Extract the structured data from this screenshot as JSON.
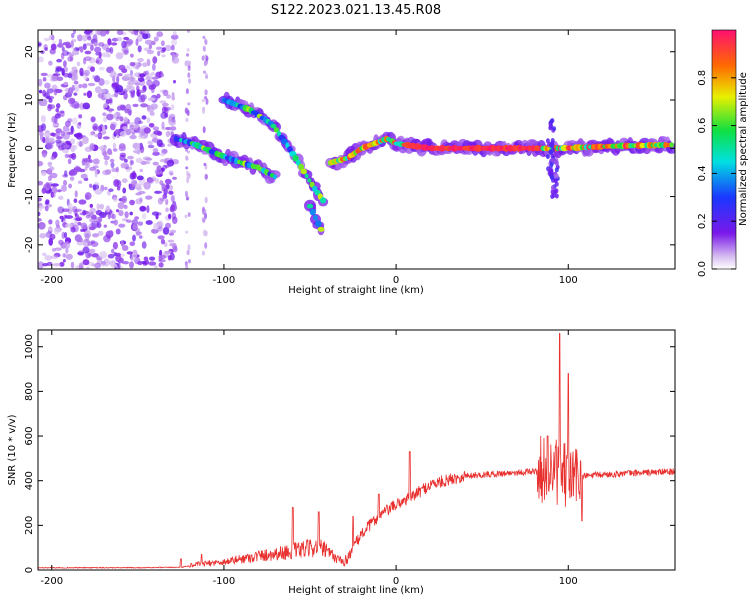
{
  "title": "S122.2023.021.13.45.R08",
  "colors": {
    "snr_line": "#e8302e",
    "ridge": "#ff2222"
  },
  "chart_data": [
    {
      "type": "heatmap",
      "xlabel": "Height of straight line (km)",
      "ylabel": "Frequency (Hz)",
      "xlim": [
        -208,
        162
      ],
      "ylim": [
        -25,
        24.5
      ],
      "xticks": [
        -200,
        -100,
        0,
        100
      ],
      "yticks": [
        -20,
        -10,
        0,
        10,
        20
      ],
      "xtick_labels": [
        "-200",
        "-100",
        "0",
        "100"
      ],
      "ytick_labels": [
        "-20",
        "-10",
        "0",
        "10",
        "20"
      ],
      "colorbar": {
        "label": "Normalized spectral amplitude",
        "range": [
          0,
          1
        ],
        "ticks": [
          0.0,
          0.2,
          0.4,
          0.6,
          0.8
        ],
        "tick_labels": [
          "0.0",
          "0.2",
          "0.4",
          "0.6",
          "0.8"
        ]
      },
      "traces": [
        {
          "name_hint": "main-ridge",
          "points": [
            [
              -128,
              2
            ],
            [
              -118,
              1
            ],
            [
              -105,
              -1
            ],
            [
              -90,
              -3
            ],
            [
              -80,
              -4
            ],
            [
              -70,
              -6
            ]
          ]
        },
        {
          "name_hint": "upper-arc",
          "points": [
            [
              -100,
              10
            ],
            [
              -85,
              8
            ],
            [
              -72,
              5
            ],
            [
              -62,
              0
            ],
            [
              -55,
              -4
            ],
            [
              -48,
              -8
            ],
            [
              -42,
              -11
            ]
          ]
        },
        {
          "name_hint": "tail",
          "points": [
            [
              -50,
              -12
            ],
            [
              -42,
              -18
            ]
          ]
        },
        {
          "name_hint": "flat-ridge",
          "points": [
            [
              -38,
              -3
            ],
            [
              -28,
              -2
            ],
            [
              -20,
              0
            ],
            [
              -5,
              2
            ],
            [
              0,
              1
            ],
            [
              20,
              0
            ],
            [
              80,
              0
            ],
            [
              95,
              0
            ],
            [
              130,
              0.5
            ],
            [
              160,
              0.7
            ]
          ]
        }
      ]
    },
    {
      "type": "line",
      "xlabel": "Height of straight line (km)",
      "ylabel": "SNR (10 * v/v)",
      "xlim": [
        -208,
        162
      ],
      "ylim": [
        0,
        1075
      ],
      "xticks": [
        -200,
        -100,
        0,
        100
      ],
      "yticks": [
        0,
        200,
        400,
        600,
        800,
        1000
      ],
      "xtick_labels": [
        "-200",
        "-100",
        "0",
        "100"
      ],
      "ytick_labels": [
        "0",
        "200",
        "400",
        "600",
        "800",
        "1000"
      ],
      "envelope": [
        [
          -208,
          10
        ],
        [
          -150,
          10
        ],
        [
          -125,
          12
        ],
        [
          -115,
          25
        ],
        [
          -100,
          35
        ],
        [
          -80,
          60
        ],
        [
          -60,
          80
        ],
        [
          -45,
          100
        ],
        [
          -30,
          30
        ],
        [
          -20,
          160
        ],
        [
          -10,
          240
        ],
        [
          0,
          290
        ],
        [
          10,
          330
        ],
        [
          20,
          380
        ],
        [
          40,
          420
        ],
        [
          60,
          430
        ],
        [
          80,
          440
        ],
        [
          90,
          430
        ],
        [
          100,
          400
        ],
        [
          110,
          420
        ],
        [
          130,
          430
        ],
        [
          162,
          440
        ]
      ],
      "spikes": [
        [
          -125,
          50
        ],
        [
          -113,
          70
        ],
        [
          -60,
          280
        ],
        [
          -45,
          260
        ],
        [
          -25,
          240
        ],
        [
          -10,
          340
        ],
        [
          8,
          530
        ],
        [
          88,
          600
        ],
        [
          95,
          1060
        ],
        [
          100,
          880
        ],
        [
          108,
          220
        ]
      ]
    }
  ]
}
